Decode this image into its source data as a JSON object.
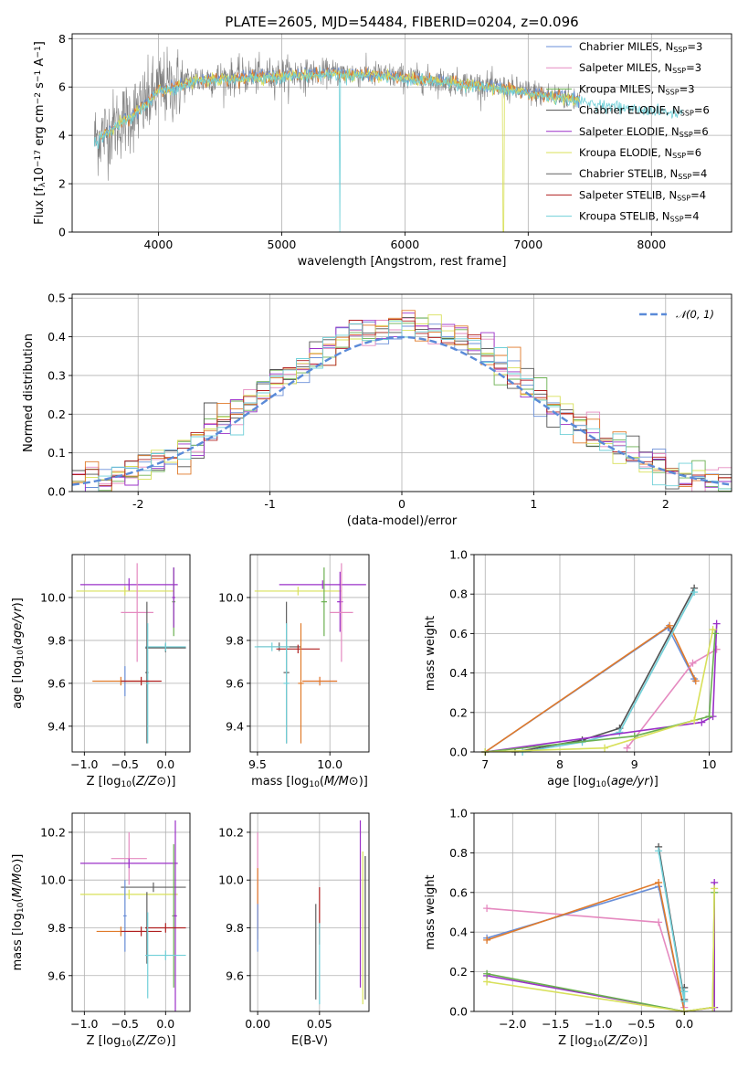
{
  "figure": {
    "title": "PLATE=2605, MJD=54484, FIBERID=0204, z=0.096"
  },
  "colors": {
    "Chabrier MILES": "#6a8fd8",
    "Salpeter MILES": "#e58ac0",
    "Kroupa MILES": "#6ab050",
    "Chabrier ELODIE": "#505050",
    "Salpeter ELODIE": "#9b30c8",
    "Kroupa ELODIE": "#d8e05a",
    "Chabrier STELIB": "#606060",
    "Salpeter STELIB": "#b02020",
    "Kroupa STELIB": "#70d0d8",
    "orange": "#e07a2a",
    "spectrum_grey": "#808080"
  },
  "chart_data": [
    {
      "id": "spectrum",
      "type": "line",
      "title": "PLATE=2605, MJD=54484, FIBERID=0204, z=0.096",
      "xlabel": "wavelength [Angstrom, rest frame]",
      "ylabel_parts": [
        "Flux [f",
        "λ",
        "10",
        "−17",
        " erg cm",
        "−2",
        " s",
        "−1",
        " A",
        "−1",
        "]"
      ],
      "xlim": [
        3300,
        8650
      ],
      "ylim": [
        0,
        8.2
      ],
      "xticks": [
        4000,
        5000,
        6000,
        7000,
        8000
      ],
      "yticks": [
        0,
        2,
        4,
        6,
        8
      ],
      "legend_position": "upper-right",
      "legend": [
        {
          "label": "Chabrier MILES",
          "nssp": "3"
        },
        {
          "label": "Salpeter MILES",
          "nssp": "3"
        },
        {
          "label": "Kroupa MILES",
          "nssp": "3"
        },
        {
          "label": "Chabrier ELODIE",
          "nssp": "6"
        },
        {
          "label": "Salpeter ELODIE",
          "nssp": "6"
        },
        {
          "label": "Kroupa ELODIE",
          "nssp": "6"
        },
        {
          "label": "Chabrier STELIB",
          "nssp": "4"
        },
        {
          "label": "Salpeter STELIB",
          "nssp": "4"
        },
        {
          "label": "Kroupa STELIB",
          "nssp": "4"
        }
      ],
      "legend_nssp_label": "N",
      "legend_nssp_sub": "SSP",
      "continuum": {
        "x": [
          3500,
          3600,
          3700,
          3800,
          3900,
          4000,
          4100,
          4300,
          4600,
          5000,
          5400,
          5800,
          6200,
          6600,
          7000,
          7400,
          7800,
          8200
        ],
        "y": [
          3.9,
          4.2,
          4.6,
          4.9,
          5.3,
          5.9,
          6.0,
          6.3,
          6.4,
          6.5,
          6.6,
          6.5,
          6.3,
          6.1,
          5.8,
          5.5,
          5.2,
          5.0
        ]
      }
    },
    {
      "id": "residuals",
      "type": "line",
      "xlabel": "(data-model)/error",
      "ylabel": "Normed distribution",
      "xlim": [
        -2.5,
        2.5
      ],
      "ylim": [
        0,
        0.51
      ],
      "xticks": [
        -2,
        -1,
        0,
        1,
        2
      ],
      "yticks": [
        0.0,
        0.1,
        0.2,
        0.3,
        0.4,
        0.5
      ],
      "yticklabels": [
        "0.0",
        "0.1",
        "0.2",
        "0.3",
        "0.4",
        "0.5"
      ],
      "legend_position": "upper-right",
      "legend_label": "𝒩(0, 1)",
      "gaussian": {
        "mean": 0,
        "sigma": 1
      }
    },
    {
      "id": "age-vs-Z",
      "type": "scatter",
      "xlabel": "Z [log10(Z/Z⊙)]",
      "ylabel": "age  [log10(age/yr)]",
      "xlim": [
        -1.15,
        0.3
      ],
      "ylim": [
        9.28,
        10.2
      ],
      "xticks": [
        -1.0,
        -0.5,
        0.0
      ],
      "xticklabels": [
        "−1.0",
        "−0.5",
        "0.0"
      ],
      "yticks": [
        9.4,
        9.6,
        9.8,
        10.0
      ],
      "yticklabels": [
        "9.4",
        "9.6",
        "9.8",
        "10.0"
      ],
      "points": [
        {
          "series": "Salpeter ELODIE",
          "x": -0.45,
          "y": 10.06,
          "xerr": 0.6,
          "yerr": 0.03
        },
        {
          "series": "Kroupa ELODIE",
          "x": -0.5,
          "y": 10.03,
          "xerr": 0.6,
          "yerr": 0.02
        },
        {
          "series": "Salpeter MILES",
          "x": -0.35,
          "y": 9.93,
          "xerr": 0.2,
          "yerr": 0.23
        },
        {
          "series": "Kroupa MILES",
          "x": 0.1,
          "y": 9.98,
          "xerr": 0.02,
          "yerr": 0.16
        },
        {
          "series": "Salpeter ELODIE",
          "x": 0.1,
          "y": 10.0,
          "xerr": 0.02,
          "yerr": 0.14
        },
        {
          "series": "Chabrier STELIB",
          "x": 0.0,
          "y": 9.765,
          "xerr": 0.25,
          "yerr": 0.02
        },
        {
          "series": "Kroupa STELIB",
          "x": 0.0,
          "y": 9.77,
          "xerr": 0.25,
          "yerr": 0.02
        },
        {
          "series": "Chabrier MILES",
          "x": -0.5,
          "y": 9.61,
          "xerr": 0.02,
          "yerr": 0.07
        },
        {
          "series": "orange",
          "x": -0.55,
          "y": 9.61,
          "xerr": 0.35,
          "yerr": 0.02
        },
        {
          "series": "Chabrier STELIB",
          "x": -0.23,
          "y": 9.65,
          "xerr": 0.02,
          "yerr": 0.33
        },
        {
          "series": "Kroupa STELIB",
          "x": -0.22,
          "y": 9.6,
          "xerr": 0.02,
          "yerr": 0.28
        },
        {
          "series": "Salpeter STELIB",
          "x": -0.3,
          "y": 9.61,
          "xerr": 0.25,
          "yerr": 0.02
        }
      ]
    },
    {
      "id": "age-vs-mass",
      "type": "scatter",
      "xlabel": "mass [log10(M/M⊙)]",
      "ylabel": "",
      "xlim": [
        9.45,
        10.27
      ],
      "ylim": [
        9.28,
        10.2
      ],
      "xticks": [
        9.5,
        10.0
      ],
      "xticklabels": [
        "9.5",
        "10.0"
      ],
      "yticks": [
        9.4,
        9.6,
        9.8,
        10.0
      ],
      "yticklabels": [
        "9.4",
        "9.6",
        "9.8",
        "10.0"
      ],
      "points": [
        {
          "series": "Salpeter ELODIE",
          "x": 9.95,
          "y": 10.06,
          "xerr": 0.3,
          "yerr": 0.02
        },
        {
          "series": "Kroupa ELODIE",
          "x": 9.78,
          "y": 10.03,
          "xerr": 0.3,
          "yerr": 0.02
        },
        {
          "series": "Kroupa MILES",
          "x": 9.96,
          "y": 9.98,
          "xerr": 0.02,
          "yerr": 0.16
        },
        {
          "series": "Salpeter ELODIE",
          "x": 10.07,
          "y": 9.98,
          "xerr": 0.02,
          "yerr": 0.14
        },
        {
          "series": "Salpeter MILES",
          "x": 10.08,
          "y": 9.93,
          "xerr": 0.08,
          "yerr": 0.23
        },
        {
          "series": "Chabrier STELIB",
          "x": 9.65,
          "y": 9.77,
          "xerr": 0.15,
          "yerr": 0.02
        },
        {
          "series": "Kroupa STELIB",
          "x": 9.6,
          "y": 9.77,
          "xerr": 0.12,
          "yerr": 0.02
        },
        {
          "series": "Salpeter STELIB",
          "x": 9.78,
          "y": 9.76,
          "xerr": 0.15,
          "yerr": 0.02
        },
        {
          "series": "Chabrier STELIB",
          "x": 9.7,
          "y": 9.65,
          "xerr": 0.02,
          "yerr": 0.33
        },
        {
          "series": "Kroupa STELIB",
          "x": 9.7,
          "y": 9.6,
          "xerr": 0.02,
          "yerr": 0.28
        },
        {
          "series": "orange",
          "x": 9.8,
          "y": 9.6,
          "xerr": 0.02,
          "yerr": 0.28
        },
        {
          "series": "Salpeter MILES",
          "x": 9.93,
          "y": 9.61,
          "xerr": 0.12,
          "yerr": 0.02
        },
        {
          "series": "orange",
          "x": 9.93,
          "y": 9.61,
          "xerr": 0.12,
          "yerr": 0.02
        }
      ]
    },
    {
      "id": "massweight-vs-age",
      "type": "line",
      "xlabel": "age  [log10(age/yr)]",
      "ylabel": "mass weight",
      "xlim": [
        6.85,
        10.3
      ],
      "ylim": [
        0,
        1.0
      ],
      "xticks": [
        7,
        8,
        9,
        10
      ],
      "yticks": [
        0.0,
        0.2,
        0.4,
        0.6,
        0.8,
        1.0
      ],
      "yticklabels": [
        "0.0",
        "0.2",
        "0.4",
        "0.6",
        "0.8",
        "1.0"
      ],
      "series": [
        {
          "name": "Chabrier MILES",
          "x": [
            7.0,
            9.45,
            9.8
          ],
          "y": [
            0.0,
            0.63,
            0.37
          ]
        },
        {
          "name": "orange",
          "x": [
            7.0,
            9.47,
            9.82
          ],
          "y": [
            0.0,
            0.64,
            0.36
          ]
        },
        {
          "name": "Salpeter MILES",
          "x": [
            8.9,
            9.78,
            10.1
          ],
          "y": [
            0.02,
            0.45,
            0.52
          ]
        },
        {
          "name": "Chabrier ELODIE",
          "x": [
            7.4,
            8.3,
            8.8,
            9.8
          ],
          "y": [
            0.0,
            0.06,
            0.12,
            0.83
          ]
        },
        {
          "name": "Kroupa STELIB",
          "x": [
            7.5,
            8.3,
            8.8,
            9.8
          ],
          "y": [
            0.0,
            0.05,
            0.1,
            0.81
          ]
        },
        {
          "name": "Salpeter ELODIE",
          "x": [
            7.0,
            9.9,
            10.05,
            10.1
          ],
          "y": [
            0.0,
            0.15,
            0.18,
            0.65
          ]
        },
        {
          "name": "Kroupa MILES",
          "x": [
            7.0,
            9.0,
            10.0,
            10.08
          ],
          "y": [
            0.0,
            0.08,
            0.18,
            0.6
          ]
        },
        {
          "name": "Kroupa ELODIE",
          "x": [
            7.0,
            8.6,
            9.8,
            10.05
          ],
          "y": [
            0.0,
            0.02,
            0.16,
            0.62
          ]
        }
      ]
    },
    {
      "id": "mass-vs-Z",
      "type": "scatter",
      "xlabel": "Z [log10(Z/Z⊙)]",
      "ylabel": "mass [log10(M/M⊙)]",
      "xlim": [
        -1.15,
        0.3
      ],
      "ylim": [
        9.45,
        10.28
      ],
      "xticks": [
        -1.0,
        -0.5,
        0.0
      ],
      "xticklabels": [
        "−1.0",
        "−0.5",
        "0.0"
      ],
      "yticks": [
        9.6,
        9.8,
        10.0,
        10.2
      ],
      "yticklabels": [
        "9.6",
        "9.8",
        "10.0",
        "10.2"
      ],
      "points": [
        {
          "series": "Salpeter MILES",
          "x": -0.45,
          "y": 10.09,
          "xerr": 0.22,
          "yerr": 0.11
        },
        {
          "series": "Salpeter ELODIE",
          "x": -0.45,
          "y": 10.07,
          "xerr": 0.6,
          "yerr": 0.02
        },
        {
          "series": "Kroupa ELODIE",
          "x": -0.45,
          "y": 9.94,
          "xerr": 0.6,
          "yerr": 0.02
        },
        {
          "series": "Chabrier STELIB",
          "x": -0.15,
          "y": 9.97,
          "xerr": 0.4,
          "yerr": 0.02
        },
        {
          "series": "Kroupa MILES",
          "x": 0.1,
          "y": 9.85,
          "xerr": 0.02,
          "yerr": 0.3
        },
        {
          "series": "Salpeter ELODIE",
          "x": 0.12,
          "y": 9.85,
          "xerr": 0.02,
          "yerr": 0.4
        },
        {
          "series": "Chabrier MILES",
          "x": -0.5,
          "y": 9.85,
          "xerr": 0.02,
          "yerr": 0.15
        },
        {
          "series": "orange",
          "x": -0.55,
          "y": 9.785,
          "xerr": 0.3,
          "yerr": 0.02
        },
        {
          "series": "Salpeter STELIB",
          "x": -0.3,
          "y": 9.785,
          "xerr": 0.25,
          "yerr": 0.02
        },
        {
          "series": "Chabrier STELIB",
          "x": -0.23,
          "y": 9.8,
          "xerr": 0.02,
          "yerr": 0.15
        },
        {
          "series": "Salpeter STELIB",
          "x": 0.0,
          "y": 9.8,
          "xerr": 0.25,
          "yerr": 0.02
        },
        {
          "series": "Kroupa STELIB",
          "x": 0.0,
          "y": 9.685,
          "xerr": 0.25,
          "yerr": 0.02
        },
        {
          "series": "Kroupa STELIB",
          "x": -0.22,
          "y": 9.685,
          "xerr": 0.02,
          "yerr": 0.18
        }
      ]
    },
    {
      "id": "mass-vs-EBV",
      "type": "scatter",
      "xlabel": "E(B-V)",
      "ylabel": "",
      "xlim": [
        -0.006,
        0.09
      ],
      "ylim": [
        9.45,
        10.28
      ],
      "xticks": [
        0.0,
        0.05
      ],
      "xticklabels": [
        "0.00",
        "0.05"
      ],
      "yticks": [
        9.6,
        9.8,
        10.0,
        10.2
      ],
      "yticklabels": [
        "9.6",
        "9.8",
        "10.0",
        "10.2"
      ],
      "points": [
        {
          "series": "Salpeter MILES",
          "x": 0.0,
          "y": 10.0,
          "xerr": 0.0,
          "yerr": 0.2
        },
        {
          "series": "orange",
          "x": 0.0,
          "y": 9.9,
          "xerr": 0.0,
          "yerr": 0.15
        },
        {
          "series": "Chabrier MILES",
          "x": 0.0,
          "y": 9.8,
          "xerr": 0.0,
          "yerr": 0.1
        },
        {
          "series": "Chabrier STELIB",
          "x": 0.047,
          "y": 9.7,
          "xerr": 0.0,
          "yerr": 0.2
        },
        {
          "series": "Salpeter STELIB",
          "x": 0.05,
          "y": 9.85,
          "xerr": 0.0,
          "yerr": 0.12
        },
        {
          "series": "Kroupa STELIB",
          "x": 0.05,
          "y": 9.65,
          "xerr": 0.0,
          "yerr": 0.17
        },
        {
          "series": "Salpeter ELODIE",
          "x": 0.083,
          "y": 9.9,
          "xerr": 0.0,
          "yerr": 0.35
        },
        {
          "series": "Kroupa ELODIE",
          "x": 0.085,
          "y": 9.8,
          "xerr": 0.0,
          "yerr": 0.32
        },
        {
          "series": "Chabrier ELODIE",
          "x": 0.087,
          "y": 9.8,
          "xerr": 0.0,
          "yerr": 0.3
        }
      ]
    },
    {
      "id": "massweight-vs-Z",
      "type": "line",
      "xlabel": "Z [log10(Z/Z⊙)]",
      "ylabel": "mass weight",
      "xlim": [
        -2.45,
        0.55
      ],
      "ylim": [
        0,
        1.0
      ],
      "xticks": [
        -2.0,
        -1.5,
        -1.0,
        -0.5,
        0.0
      ],
      "xticklabels": [
        "−2.0",
        "−1.5",
        "−1.0",
        "−0.5",
        "0.0"
      ],
      "yticks": [
        0.0,
        0.2,
        0.4,
        0.6,
        0.8,
        1.0
      ],
      "yticklabels": [
        "0.0",
        "0.2",
        "0.4",
        "0.6",
        "0.8",
        "1.0"
      ],
      "series": [
        {
          "name": "Salpeter MILES",
          "x": [
            -2.3,
            -0.3,
            0.0
          ],
          "y": [
            0.52,
            0.45,
            0.02
          ]
        },
        {
          "name": "Chabrier MILES",
          "x": [
            -2.3,
            -0.3,
            0.0
          ],
          "y": [
            0.37,
            0.63,
            0.0
          ]
        },
        {
          "name": "orange",
          "x": [
            -2.3,
            -0.3,
            0.0
          ],
          "y": [
            0.36,
            0.65,
            0.0
          ]
        },
        {
          "name": "Chabrier ELODIE",
          "x": [
            -0.3,
            0.0,
            0.0
          ],
          "y": [
            0.83,
            0.06,
            0.12
          ]
        },
        {
          "name": "Kroupa STELIB",
          "x": [
            -0.3,
            0.0,
            0.0
          ],
          "y": [
            0.81,
            0.05,
            0.1
          ]
        },
        {
          "name": "Salpeter ELODIE",
          "x": [
            -2.3,
            0.0,
            0.35,
            0.35
          ],
          "y": [
            0.18,
            0.0,
            0.02,
            0.65
          ]
        },
        {
          "name": "Kroupa MILES",
          "x": [
            -2.3,
            0.0,
            0.33,
            0.35
          ],
          "y": [
            0.19,
            0.0,
            0.02,
            0.6
          ]
        },
        {
          "name": "Kroupa ELODIE",
          "x": [
            -2.3,
            0.0,
            0.33,
            0.35
          ],
          "y": [
            0.15,
            0.0,
            0.02,
            0.62
          ]
        }
      ]
    }
  ]
}
